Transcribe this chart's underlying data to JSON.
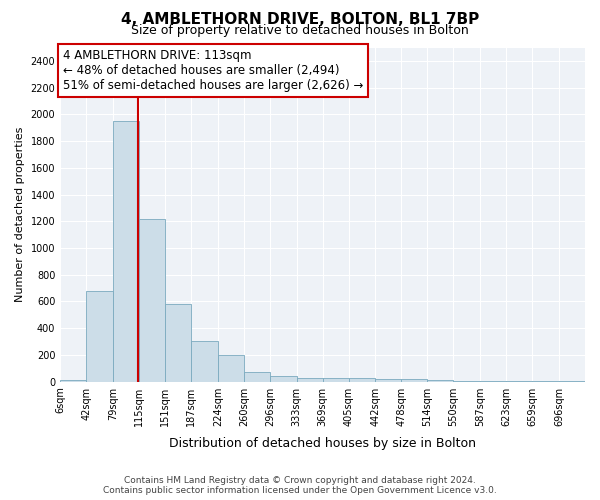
{
  "title": "4, AMBLETHORN DRIVE, BOLTON, BL1 7BP",
  "subtitle": "Size of property relative to detached houses in Bolton",
  "xlabel": "Distribution of detached houses by size in Bolton",
  "ylabel": "Number of detached properties",
  "footer_line1": "Contains HM Land Registry data © Crown copyright and database right 2024.",
  "footer_line2": "Contains public sector information licensed under the Open Government Licence v3.0.",
  "bar_edges": [
    6,
    42,
    79,
    115,
    151,
    187,
    224,
    260,
    296,
    333,
    369,
    405,
    442,
    478,
    514,
    550,
    587,
    623,
    659,
    696,
    732
  ],
  "bar_heights": [
    10,
    680,
    1950,
    1220,
    580,
    305,
    200,
    70,
    40,
    30,
    28,
    25,
    22,
    18,
    10,
    8,
    5,
    3,
    2,
    2
  ],
  "bar_color": "#ccdde8",
  "bar_edgecolor": "#7aaabf",
  "vline_x": 113,
  "vline_color": "#cc0000",
  "annotation_text": "4 AMBLETHORN DRIVE: 113sqm\n← 48% of detached houses are smaller (2,494)\n51% of semi-detached houses are larger (2,626) →",
  "annotation_box_facecolor": "#ffffff",
  "annotation_box_edgecolor": "#cc0000",
  "ylim": [
    0,
    2500
  ],
  "yticks": [
    0,
    200,
    400,
    600,
    800,
    1000,
    1200,
    1400,
    1600,
    1800,
    2000,
    2200,
    2400
  ],
  "bg_color": "#ffffff",
  "plot_bg_color": "#eef2f7",
  "grid_color": "#ffffff",
  "tick_label_fontsize": 7,
  "title_fontsize": 11,
  "subtitle_fontsize": 9,
  "xlabel_fontsize": 9,
  "ylabel_fontsize": 8,
  "annotation_fontsize": 8.5,
  "footer_fontsize": 6.5
}
